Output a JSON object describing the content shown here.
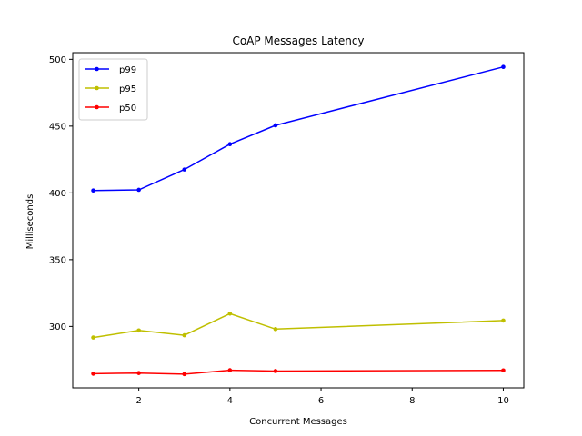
{
  "chart_data": {
    "type": "line",
    "title": "CoAP Messages Latency",
    "xlabel": "Concurrent Messages",
    "ylabel": "Milliseconds",
    "xlim": [
      0.55,
      10.45
    ],
    "ylim": [
      254,
      505
    ],
    "xticks": [
      2,
      4,
      6,
      8,
      10
    ],
    "yticks": [
      300,
      350,
      400,
      450,
      500
    ],
    "grid": false,
    "legend_position": "top-left",
    "x": [
      1,
      2,
      3,
      4,
      5,
      10
    ],
    "series": [
      {
        "name": "p99",
        "color": "#0000ff",
        "values": [
          401.8,
          402.3,
          417.5,
          436.5,
          450.6,
          494.3
        ]
      },
      {
        "name": "p95",
        "color": "#bfbf00",
        "values": [
          291.7,
          297.0,
          293.4,
          309.6,
          298.0,
          304.4
        ]
      },
      {
        "name": "p50",
        "color": "#ff0000",
        "values": [
          264.6,
          265.1,
          264.3,
          267.2,
          266.6,
          267.1
        ]
      }
    ]
  }
}
